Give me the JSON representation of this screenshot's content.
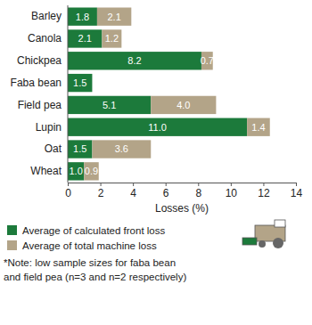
{
  "chart_data": {
    "type": "bar",
    "orientation": "horizontal",
    "stacked": true,
    "data_labels": true,
    "grid": false,
    "legend": "bottom",
    "categories": [
      "Barley",
      "Canola",
      "Chickpea",
      "Faba bean",
      "Field pea",
      "Lupin",
      "Oat",
      "Wheat"
    ],
    "series": [
      {
        "name": "Average of calculated front loss",
        "color": "#1c7a3b",
        "values": [
          1.8,
          2.1,
          8.2,
          1.5,
          5.1,
          11.0,
          1.5,
          1.0
        ],
        "value_labels": [
          "1.8",
          "2.1",
          "8.2",
          "1.5",
          "5.1",
          "11.0",
          "1.5",
          "1.0"
        ]
      },
      {
        "name": "Average of total machine loss",
        "color": "#b3a488",
        "values": [
          2.1,
          1.2,
          0.7,
          null,
          4.0,
          1.4,
          3.6,
          0.9
        ],
        "value_labels": [
          "2.1",
          "1.2",
          "0.7",
          null,
          "4.0",
          "1.4",
          "3.6",
          "0.9"
        ]
      }
    ],
    "x_label": "Losses (%)",
    "xlim": [
      0,
      14
    ],
    "xticks": [
      0,
      2,
      4,
      6,
      8,
      10,
      12,
      14
    ],
    "annotations": [
      "*Note: low sample sizes for faba bean",
      "and field pea (n=3 and n=2 respectively)"
    ]
  }
}
